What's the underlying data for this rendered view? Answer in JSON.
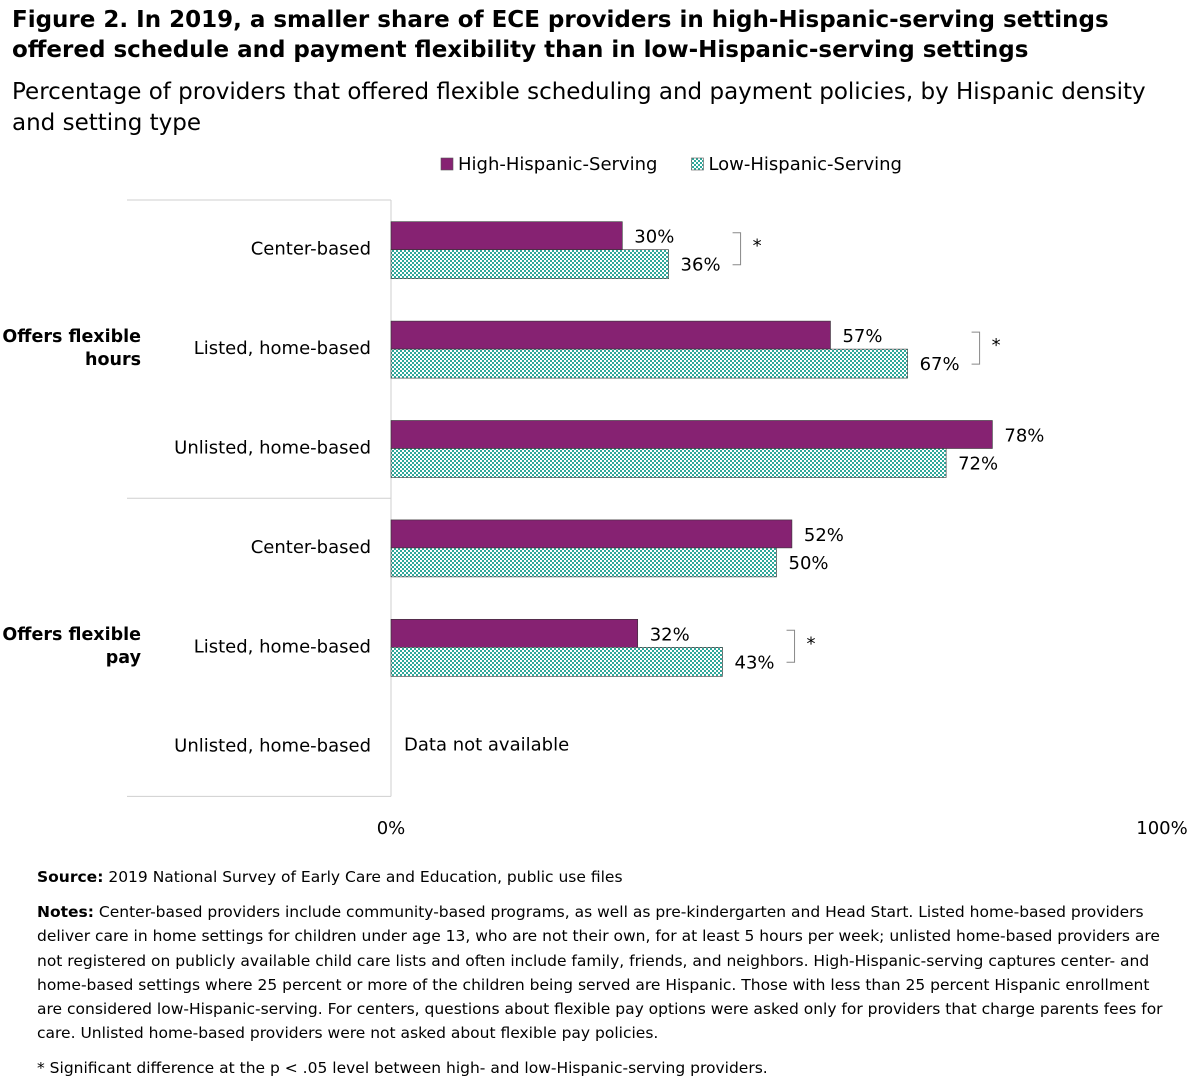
{
  "chart_data": {
    "type": "bar",
    "orientation": "horizontal",
    "title": "Figure 2. In 2019, a smaller share of ECE providers in high-Hispanic-serving settings offered schedule and payment flexibility than in low-Hispanic-serving settings",
    "subtitle": "Percentage of providers that offered flexible scheduling and payment policies, by Hispanic density and setting type",
    "groups": [
      {
        "name": "Offers flexible hours",
        "categories": [
          "Center-based",
          "Listed, home-based",
          "Unlisted, home-based"
        ]
      },
      {
        "name": "Offers flexible pay",
        "categories": [
          "Center-based",
          "Listed, home-based",
          "Unlisted, home-based"
        ]
      }
    ],
    "series": [
      {
        "name": "High-Hispanic-Serving",
        "color": "#862272",
        "values": [
          30,
          57,
          78,
          52,
          32,
          null
        ],
        "value_labels": [
          "30%",
          "57%",
          "78%",
          "52%",
          "32%",
          null
        ]
      },
      {
        "name": "Low-Hispanic-Serving",
        "color": "#2fa89a",
        "pattern": "checker",
        "values": [
          36,
          67,
          72,
          50,
          43,
          null
        ],
        "value_labels": [
          "36%",
          "67%",
          "72%",
          "50%",
          "43%",
          null
        ]
      }
    ],
    "significance": [
      "*",
      "*",
      null,
      null,
      "*",
      null
    ],
    "no_data_label": "Data not available",
    "xlim": [
      0,
      100
    ],
    "xticks": [
      {
        "value": 0,
        "label": "0%"
      },
      {
        "value": 100,
        "label": "100%"
      }
    ],
    "legend": "top",
    "source": {
      "label": "Source:",
      "text": "2019 National Survey of Early Care and Education, public use files"
    },
    "notes": {
      "label": "Notes:",
      "text": "Center-based providers include community-based programs, as well as pre-kindergarten and Head Start. Listed home-based providers deliver care in home settings for children under age 13, who are not their own, for at least 5 hours per week; unlisted home-based providers are not registered on publicly available child care lists and often include family, friends, and neighbors. High-Hispanic-serving captures center- and home-based settings where 25 percent or more of the children being served are Hispanic. Those with less than 25 percent Hispanic enrollment are considered low-Hispanic-serving. For centers, questions about flexible pay options were asked only for providers that charge parents fees for care. Unlisted home-based providers were not asked about flexible pay policies."
    },
    "footnote": "* Significant difference at the p < .05 level between high- and low-Hispanic-serving providers."
  }
}
